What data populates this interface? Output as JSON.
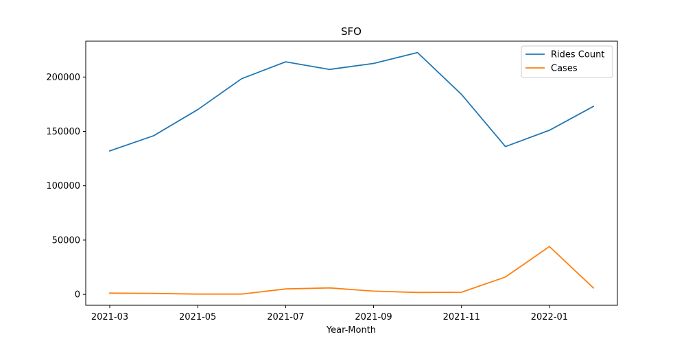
{
  "chart_data": {
    "type": "line",
    "title": "SFO",
    "xlabel": "Year-Month",
    "ylabel": "",
    "x": [
      "2021-03",
      "2021-04",
      "2021-05",
      "2021-06",
      "2021-07",
      "2021-08",
      "2021-09",
      "2021-10",
      "2021-11",
      "2021-12",
      "2022-01",
      "2022-02"
    ],
    "x_tick_labels": [
      "2021-03",
      "2021-05",
      "2021-07",
      "2021-09",
      "2021-11",
      "2022-01"
    ],
    "y_ticks": [
      0,
      50000,
      100000,
      150000,
      200000
    ],
    "ylim": [
      -10000,
      233000
    ],
    "grid": false,
    "legend_position": "top-right",
    "series": [
      {
        "name": "Rides Count",
        "color": "#1f77b4",
        "values": [
          132000,
          146000,
          170000,
          198500,
          214000,
          207000,
          212500,
          222500,
          184000,
          136000,
          151000,
          173000
        ]
      },
      {
        "name": "Cases",
        "color": "#ff7f0e",
        "values": [
          1200,
          900,
          300,
          300,
          5000,
          6000,
          3000,
          1800,
          2000,
          16000,
          44000,
          6000
        ]
      }
    ]
  }
}
